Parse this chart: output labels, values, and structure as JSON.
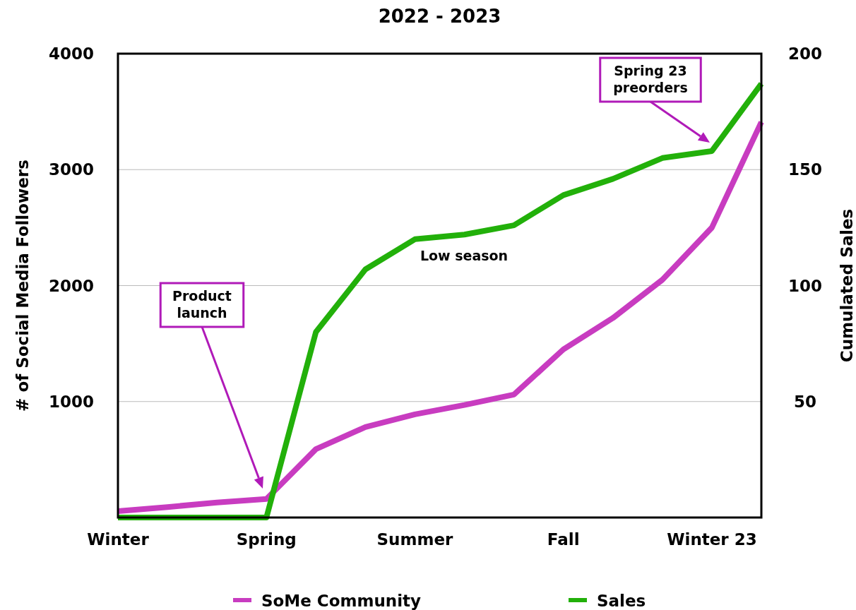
{
  "chart_data": {
    "type": "line",
    "title": "2022 - 2023",
    "ylabel": "# of Social Media Followers",
    "y2label": "Cumulated Sales",
    "categories": [
      "Winter",
      null,
      null,
      "Spring",
      null,
      null,
      "Summer",
      null,
      null,
      "Fall",
      null,
      null,
      "Winter 23",
      null
    ],
    "series": [
      {
        "name": "SoMe Community",
        "color": "#c83cc0",
        "values": [
          55,
          90,
          130,
          160,
          590,
          780,
          890,
          970,
          1060,
          1450,
          1720,
          2050,
          2500,
          3410
        ]
      },
      {
        "name": "Sales",
        "color": "#22b00a",
        "axis": "y2",
        "values": [
          0,
          0,
          0,
          0,
          80,
          107,
          120,
          122,
          126,
          139,
          146,
          155,
          158,
          187
        ]
      }
    ],
    "ylim": [
      0,
      4000
    ],
    "yticks": [
      {
        "value": 0,
        "label": null
      },
      1000,
      2000,
      3000,
      4000
    ],
    "y2lim": [
      0,
      200
    ],
    "y2ticks": [
      50,
      100,
      150,
      200
    ],
    "grid": "y",
    "legend": "bottom",
    "line_style": "solid",
    "annotations": [
      "Product launch",
      "Spring 23 preorders",
      "Low season"
    ]
  }
}
